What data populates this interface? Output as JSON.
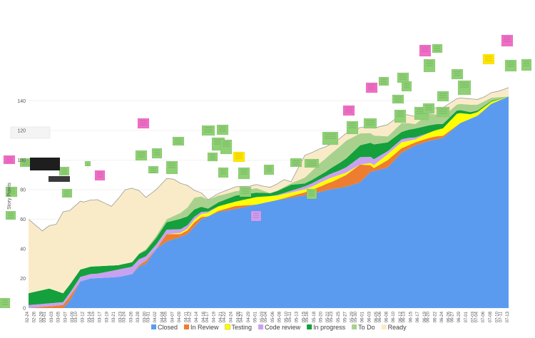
{
  "chart_data": {
    "type": "area",
    "ylim": [
      0,
      160
    ],
    "yticks": [
      0,
      20,
      40,
      60,
      80,
      100,
      120,
      140
    ],
    "x": [
      "02-24",
      "02-25",
      "02-26",
      "02-27",
      "02-28",
      "03-01",
      "03-02",
      "03-03",
      "03-04",
      "03-05",
      "03-06",
      "03-07",
      "03-08",
      "03-09",
      "03-10",
      "03-11",
      "03-12",
      "03-13",
      "03-14",
      "03-15",
      "03-16",
      "03-17",
      "03-18",
      "03-19",
      "03-20",
      "03-21",
      "03-22",
      "03-23",
      "03-24",
      "03-25",
      "03-26",
      "03-27",
      "03-28",
      "03-29",
      "03-30",
      "03-31",
      "04-01",
      "04-02",
      "04-03",
      "04-04",
      "04-05",
      "04-06",
      "04-07",
      "04-08",
      "04-09",
      "04-10",
      "04-11",
      "04-12",
      "04-13",
      "04-14",
      "04-15",
      "04-16",
      "04-17",
      "04-18",
      "04-19",
      "04-20",
      "04-21",
      "04-22",
      "04-23",
      "04-24",
      "04-25",
      "04-26",
      "04-27",
      "04-28",
      "04-29",
      "04-30",
      "05-01",
      "05-02",
      "05-03",
      "05-04",
      "05-05",
      "05-06",
      "05-07",
      "05-08",
      "05-09",
      "05-10",
      "05-11",
      "05-12",
      "05-13",
      "05-14",
      "05-15",
      "05-16",
      "05-17",
      "05-18",
      "05-19",
      "05-20",
      "05-21",
      "05-22",
      "05-23",
      "05-24",
      "05-25",
      "05-26",
      "05-27",
      "05-28",
      "05-29",
      "05-30",
      "05-31",
      "06-01",
      "06-02",
      "06-03",
      "06-04",
      "06-05",
      "06-06",
      "06-07",
      "06-08",
      "06-09",
      "06-10",
      "06-11",
      "06-12",
      "06-13",
      "06-14",
      "06-15",
      "06-16",
      "06-17",
      "06-18",
      "06-19",
      "06-20",
      "06-21",
      "06-22",
      "06-23",
      "06-24",
      "06-25",
      "06-26",
      "06-27",
      "06-28",
      "06-29",
      "06-30",
      "07-01",
      "07-02",
      "07-03",
      "07-04",
      "07-05",
      "07-06",
      "07-07",
      "07-08",
      "07-09",
      "07-10",
      "07-11",
      "07-12",
      "07-13"
    ],
    "xticks_shown": [
      "02-24",
      "02-26",
      "02-28",
      "03-01",
      "03-03",
      "03-05",
      "03-07",
      "03-09",
      "03-10",
      "03-12",
      "03-14",
      "03-15",
      "03-17",
      "03-19",
      "03-21",
      "03-23",
      "03-24",
      "03-26",
      "03-28",
      "03-30",
      "03-31",
      "04-02",
      "04-04",
      "04-05",
      "04-07",
      "04-09",
      "04-11",
      "04-12",
      "04-14",
      "04-16",
      "04-17",
      "04-19",
      "04-21",
      "04-22",
      "04-24",
      "04-26",
      "04-27",
      "04-29",
      "05-01",
      "05-03",
      "05-04",
      "05-06",
      "05-08",
      "05-10",
      "05-11",
      "05-13",
      "05-15",
      "05-16",
      "05-18",
      "05-20",
      "05-22",
      "05-23",
      "05-25",
      "05-27",
      "05-29",
      "05-30",
      "06-01",
      "06-03",
      "06-05",
      "06-06",
      "06-08",
      "06-10",
      "06-12",
      "06-13",
      "06-15",
      "06-17",
      "06-19",
      "06-20",
      "06-22",
      "06-24",
      "06-26",
      "06-27",
      "06-29",
      "07-01",
      "07-03",
      "07-04",
      "07-06",
      "07-08",
      "07-10",
      "07-11",
      "07-13"
    ],
    "ylabel": "Story Points",
    "series": [
      {
        "name": "Closed",
        "color": "#5b9bef",
        "keyframes": [
          [
            0,
            0
          ],
          [
            10,
            0
          ],
          [
            12,
            5
          ],
          [
            15,
            18
          ],
          [
            18,
            20
          ],
          [
            26,
            21
          ],
          [
            30,
            23
          ],
          [
            32,
            28
          ],
          [
            34,
            30
          ],
          [
            37,
            40
          ],
          [
            40,
            45
          ],
          [
            44,
            48
          ],
          [
            46,
            50
          ],
          [
            48,
            55
          ],
          [
            50,
            60
          ],
          [
            55,
            65
          ],
          [
            60,
            67
          ],
          [
            66,
            70
          ],
          [
            72,
            73
          ],
          [
            77,
            75
          ],
          [
            82,
            77
          ],
          [
            87,
            80
          ],
          [
            92,
            82
          ],
          [
            96,
            85
          ],
          [
            99,
            92
          ],
          [
            104,
            95
          ],
          [
            108,
            105
          ],
          [
            112,
            110
          ],
          [
            116,
            113
          ],
          [
            120,
            115
          ],
          [
            125,
            125
          ],
          [
            130,
            130
          ],
          [
            134,
            138
          ],
          [
            139,
            143
          ]
        ]
      },
      {
        "name": "In Review",
        "color": "#ed7d31",
        "keyframes": [
          [
            0,
            0
          ],
          [
            10,
            2
          ],
          [
            12,
            3
          ],
          [
            15,
            0
          ],
          [
            30,
            0
          ],
          [
            34,
            2
          ],
          [
            37,
            0
          ],
          [
            40,
            5
          ],
          [
            44,
            2
          ],
          [
            48,
            3
          ],
          [
            52,
            0
          ],
          [
            60,
            2
          ],
          [
            66,
            0
          ],
          [
            72,
            0
          ],
          [
            80,
            2
          ],
          [
            88,
            5
          ],
          [
            92,
            8
          ],
          [
            96,
            12
          ],
          [
            100,
            2
          ],
          [
            104,
            5
          ],
          [
            108,
            3
          ],
          [
            112,
            2
          ],
          [
            118,
            2
          ],
          [
            125,
            0
          ],
          [
            139,
            0
          ]
        ]
      },
      {
        "name": "Testing",
        "color": "#ffff00",
        "keyframes": [
          [
            0,
            0
          ],
          [
            30,
            0
          ],
          [
            40,
            0
          ],
          [
            55,
            3
          ],
          [
            60,
            3
          ],
          [
            66,
            5
          ],
          [
            72,
            3
          ],
          [
            80,
            2
          ],
          [
            88,
            3
          ],
          [
            96,
            0
          ],
          [
            104,
            4
          ],
          [
            108,
            4
          ],
          [
            112,
            2
          ],
          [
            120,
            5
          ],
          [
            124,
            8
          ],
          [
            128,
            3
          ],
          [
            132,
            2
          ],
          [
            139,
            0
          ]
        ]
      },
      {
        "name": "Code review",
        "color": "#c8a2f0",
        "keyframes": [
          [
            0,
            2
          ],
          [
            10,
            2
          ],
          [
            15,
            3
          ],
          [
            20,
            3
          ],
          [
            26,
            5
          ],
          [
            30,
            5
          ],
          [
            34,
            3
          ],
          [
            40,
            3
          ],
          [
            48,
            2
          ],
          [
            55,
            0
          ],
          [
            70,
            0
          ],
          [
            80,
            2
          ],
          [
            90,
            3
          ],
          [
            96,
            5
          ],
          [
            100,
            4
          ],
          [
            104,
            2
          ],
          [
            110,
            2
          ],
          [
            116,
            0
          ],
          [
            139,
            0
          ]
        ]
      },
      {
        "name": "In progress",
        "color": "#14a03c",
        "keyframes": [
          [
            0,
            8
          ],
          [
            6,
            10
          ],
          [
            10,
            6
          ],
          [
            15,
            5
          ],
          [
            20,
            5
          ],
          [
            26,
            3
          ],
          [
            30,
            3
          ],
          [
            34,
            4
          ],
          [
            40,
            5
          ],
          [
            44,
            7
          ],
          [
            48,
            5
          ],
          [
            52,
            2
          ],
          [
            56,
            3
          ],
          [
            60,
            4
          ],
          [
            66,
            3
          ],
          [
            70,
            2
          ],
          [
            76,
            4
          ],
          [
            80,
            2
          ],
          [
            86,
            3
          ],
          [
            90,
            5
          ],
          [
            96,
            8
          ],
          [
            100,
            10
          ],
          [
            104,
            6
          ],
          [
            108,
            5
          ],
          [
            112,
            6
          ],
          [
            116,
            5
          ],
          [
            120,
            3
          ],
          [
            125,
            2
          ],
          [
            130,
            1
          ],
          [
            139,
            0
          ]
        ]
      },
      {
        "name": "To Do",
        "color": "#a9d18e",
        "keyframes": [
          [
            0,
            0
          ],
          [
            30,
            0
          ],
          [
            40,
            2
          ],
          [
            44,
            4
          ],
          [
            48,
            8
          ],
          [
            52,
            6
          ],
          [
            56,
            4
          ],
          [
            60,
            3
          ],
          [
            66,
            3
          ],
          [
            70,
            0
          ],
          [
            76,
            1
          ],
          [
            80,
            4
          ],
          [
            84,
            8
          ],
          [
            88,
            10
          ],
          [
            92,
            12
          ],
          [
            96,
            8
          ],
          [
            100,
            6
          ],
          [
            104,
            4
          ],
          [
            108,
            6
          ],
          [
            112,
            3
          ],
          [
            116,
            8
          ],
          [
            120,
            5
          ],
          [
            124,
            4
          ],
          [
            128,
            5
          ],
          [
            132,
            3
          ],
          [
            139,
            0
          ]
        ]
      },
      {
        "name": "Ready",
        "color": "#faebc8",
        "keyframes": [
          [
            0,
            50
          ],
          [
            4,
            40
          ],
          [
            8,
            45
          ],
          [
            10,
            55
          ],
          [
            12,
            50
          ],
          [
            16,
            45
          ],
          [
            20,
            45
          ],
          [
            24,
            40
          ],
          [
            28,
            50
          ],
          [
            30,
            50
          ],
          [
            34,
            35
          ],
          [
            38,
            30
          ],
          [
            42,
            25
          ],
          [
            44,
            20
          ],
          [
            46,
            15
          ],
          [
            48,
            5
          ],
          [
            52,
            0
          ],
          [
            56,
            2
          ],
          [
            60,
            3
          ],
          [
            64,
            2
          ],
          [
            68,
            3
          ],
          [
            70,
            4
          ],
          [
            74,
            5
          ],
          [
            76,
            1
          ],
          [
            80,
            15
          ],
          [
            84,
            10
          ],
          [
            88,
            6
          ],
          [
            92,
            5
          ],
          [
            96,
            4
          ],
          [
            100,
            5
          ],
          [
            104,
            8
          ],
          [
            108,
            6
          ],
          [
            112,
            5
          ],
          [
            116,
            3
          ],
          [
            120,
            6
          ],
          [
            124,
            4
          ],
          [
            128,
            4
          ],
          [
            132,
            3
          ],
          [
            136,
            4
          ],
          [
            139,
            6
          ]
        ]
      }
    ],
    "legend": "bottom",
    "grid": true
  }
}
